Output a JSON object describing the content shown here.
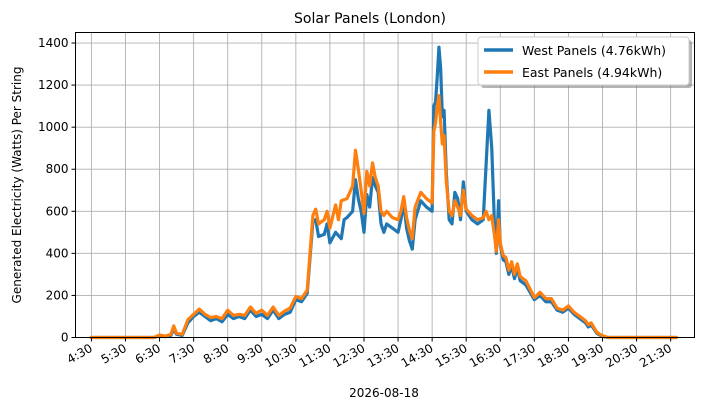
{
  "chart_data": {
    "type": "line",
    "title": "Solar Panels (London)",
    "xlabel": "2026-08-18",
    "ylabel": "Generated Electricity (Watts) Per String",
    "grid": true,
    "legend_position": "top-right",
    "xlim": [
      "04:02",
      "22:12"
    ],
    "ylim": [
      0,
      1450
    ],
    "x_ticks": [
      "4:30",
      "5:30",
      "6:30",
      "7:30",
      "8:30",
      "9:30",
      "10:30",
      "11:30",
      "12:30",
      "13:30",
      "14:30",
      "15:30",
      "16:30",
      "17:30",
      "18:30",
      "19:30",
      "20:30",
      "21:30"
    ],
    "y_ticks": [
      0,
      200,
      400,
      600,
      800,
      1000,
      1200,
      1400
    ],
    "series": [
      {
        "name": "West Panels (4.76kWh)",
        "color": "#1f77b4",
        "points": [
          [
            "04:30",
            0
          ],
          [
            "06:20",
            0
          ],
          [
            "06:30",
            8
          ],
          [
            "06:40",
            4
          ],
          [
            "06:50",
            10
          ],
          [
            "06:55",
            40
          ],
          [
            "07:00",
            15
          ],
          [
            "07:10",
            10
          ],
          [
            "07:20",
            70
          ],
          [
            "07:30",
            100
          ],
          [
            "07:40",
            120
          ],
          [
            "07:50",
            100
          ],
          [
            "08:00",
            80
          ],
          [
            "08:10",
            90
          ],
          [
            "08:20",
            75
          ],
          [
            "08:30",
            110
          ],
          [
            "08:40",
            90
          ],
          [
            "08:50",
            100
          ],
          [
            "09:00",
            90
          ],
          [
            "09:10",
            130
          ],
          [
            "09:20",
            100
          ],
          [
            "09:30",
            110
          ],
          [
            "09:40",
            90
          ],
          [
            "09:50",
            130
          ],
          [
            "10:00",
            90
          ],
          [
            "10:10",
            110
          ],
          [
            "10:20",
            120
          ],
          [
            "10:30",
            180
          ],
          [
            "10:40",
            170
          ],
          [
            "10:50",
            210
          ],
          [
            "11:00",
            550
          ],
          [
            "11:05",
            560
          ],
          [
            "11:10",
            480
          ],
          [
            "11:20",
            490
          ],
          [
            "11:25",
            540
          ],
          [
            "11:30",
            450
          ],
          [
            "11:40",
            500
          ],
          [
            "11:50",
            470
          ],
          [
            "11:55",
            560
          ],
          [
            "12:00",
            570
          ],
          [
            "12:10",
            600
          ],
          [
            "12:15",
            750
          ],
          [
            "12:20",
            660
          ],
          [
            "12:25",
            600
          ],
          [
            "12:30",
            500
          ],
          [
            "12:35",
            680
          ],
          [
            "12:40",
            620
          ],
          [
            "12:45",
            760
          ],
          [
            "12:50",
            720
          ],
          [
            "12:55",
            690
          ],
          [
            "13:00",
            540
          ],
          [
            "13:05",
            500
          ],
          [
            "13:10",
            540
          ],
          [
            "13:20",
            520
          ],
          [
            "13:30",
            500
          ],
          [
            "13:35",
            560
          ],
          [
            "13:40",
            640
          ],
          [
            "13:45",
            520
          ],
          [
            "13:50",
            460
          ],
          [
            "13:55",
            420
          ],
          [
            "14:00",
            560
          ],
          [
            "14:10",
            650
          ],
          [
            "14:20",
            620
          ],
          [
            "14:30",
            600
          ],
          [
            "14:33",
            1100
          ],
          [
            "14:36",
            1120
          ],
          [
            "14:39",
            1240
          ],
          [
            "14:42",
            1380
          ],
          [
            "14:45",
            1280
          ],
          [
            "14:48",
            1050
          ],
          [
            "14:51",
            1080
          ],
          [
            "14:55",
            780
          ],
          [
            "15:00",
            560
          ],
          [
            "15:05",
            540
          ],
          [
            "15:10",
            690
          ],
          [
            "15:15",
            660
          ],
          [
            "15:20",
            560
          ],
          [
            "15:25",
            740
          ],
          [
            "15:30",
            600
          ],
          [
            "15:40",
            560
          ],
          [
            "15:50",
            540
          ],
          [
            "16:00",
            560
          ],
          [
            "16:05",
            820
          ],
          [
            "16:10",
            1080
          ],
          [
            "16:15",
            900
          ],
          [
            "16:20",
            520
          ],
          [
            "16:23",
            400
          ],
          [
            "16:27",
            650
          ],
          [
            "16:30",
            440
          ],
          [
            "16:35",
            370
          ],
          [
            "16:40",
            360
          ],
          [
            "16:45",
            300
          ],
          [
            "16:50",
            340
          ],
          [
            "16:55",
            280
          ],
          [
            "17:00",
            330
          ],
          [
            "17:05",
            270
          ],
          [
            "17:15",
            250
          ],
          [
            "17:30",
            180
          ],
          [
            "17:40",
            200
          ],
          [
            "17:50",
            170
          ],
          [
            "18:00",
            170
          ],
          [
            "18:10",
            130
          ],
          [
            "18:20",
            120
          ],
          [
            "18:30",
            140
          ],
          [
            "18:40",
            110
          ],
          [
            "18:50",
            90
          ],
          [
            "19:00",
            70
          ],
          [
            "19:05",
            50
          ],
          [
            "19:10",
            60
          ],
          [
            "19:20",
            20
          ],
          [
            "19:30",
            5
          ],
          [
            "19:40",
            0
          ],
          [
            "21:40",
            0
          ]
        ]
      },
      {
        "name": "East Panels (4.94kWh)",
        "color": "#ff7f0e",
        "points": [
          [
            "04:30",
            0
          ],
          [
            "06:20",
            0
          ],
          [
            "06:30",
            12
          ],
          [
            "06:40",
            6
          ],
          [
            "06:50",
            15
          ],
          [
            "06:55",
            55
          ],
          [
            "07:00",
            20
          ],
          [
            "07:10",
            15
          ],
          [
            "07:20",
            85
          ],
          [
            "07:30",
            110
          ],
          [
            "07:40",
            135
          ],
          [
            "07:50",
            110
          ],
          [
            "08:00",
            95
          ],
          [
            "08:10",
            100
          ],
          [
            "08:20",
            90
          ],
          [
            "08:30",
            130
          ],
          [
            "08:40",
            105
          ],
          [
            "08:50",
            110
          ],
          [
            "09:00",
            105
          ],
          [
            "09:10",
            145
          ],
          [
            "09:20",
            115
          ],
          [
            "09:30",
            130
          ],
          [
            "09:40",
            105
          ],
          [
            "09:50",
            145
          ],
          [
            "10:00",
            105
          ],
          [
            "10:10",
            125
          ],
          [
            "10:20",
            140
          ],
          [
            "10:30",
            195
          ],
          [
            "10:40",
            185
          ],
          [
            "10:50",
            225
          ],
          [
            "11:00",
            580
          ],
          [
            "11:05",
            610
          ],
          [
            "11:10",
            540
          ],
          [
            "11:20",
            560
          ],
          [
            "11:25",
            600
          ],
          [
            "11:30",
            520
          ],
          [
            "11:40",
            630
          ],
          [
            "11:45",
            560
          ],
          [
            "11:50",
            650
          ],
          [
            "12:00",
            660
          ],
          [
            "12:10",
            720
          ],
          [
            "12:15",
            890
          ],
          [
            "12:20",
            800
          ],
          [
            "12:25",
            700
          ],
          [
            "12:30",
            590
          ],
          [
            "12:35",
            790
          ],
          [
            "12:40",
            720
          ],
          [
            "12:45",
            830
          ],
          [
            "12:50",
            760
          ],
          [
            "12:55",
            720
          ],
          [
            "13:00",
            600
          ],
          [
            "13:05",
            580
          ],
          [
            "13:10",
            600
          ],
          [
            "13:20",
            570
          ],
          [
            "13:30",
            560
          ],
          [
            "13:35",
            600
          ],
          [
            "13:40",
            670
          ],
          [
            "13:45",
            570
          ],
          [
            "13:50",
            510
          ],
          [
            "13:55",
            470
          ],
          [
            "14:00",
            620
          ],
          [
            "14:10",
            690
          ],
          [
            "14:20",
            660
          ],
          [
            "14:30",
            640
          ],
          [
            "14:33",
            980
          ],
          [
            "14:36",
            1020
          ],
          [
            "14:39",
            1100
          ],
          [
            "14:42",
            1150
          ],
          [
            "14:45",
            1020
          ],
          [
            "14:48",
            920
          ],
          [
            "14:51",
            960
          ],
          [
            "14:55",
            740
          ],
          [
            "15:00",
            600
          ],
          [
            "15:05",
            580
          ],
          [
            "15:10",
            650
          ],
          [
            "15:15",
            620
          ],
          [
            "15:20",
            580
          ],
          [
            "15:25",
            700
          ],
          [
            "15:30",
            610
          ],
          [
            "15:40",
            580
          ],
          [
            "15:50",
            560
          ],
          [
            "16:00",
            570
          ],
          [
            "16:05",
            600
          ],
          [
            "16:10",
            560
          ],
          [
            "16:15",
            580
          ],
          [
            "16:20",
            480
          ],
          [
            "16:23",
            410
          ],
          [
            "16:27",
            560
          ],
          [
            "16:30",
            450
          ],
          [
            "16:35",
            390
          ],
          [
            "16:40",
            380
          ],
          [
            "16:45",
            320
          ],
          [
            "16:50",
            360
          ],
          [
            "16:55",
            300
          ],
          [
            "17:00",
            350
          ],
          [
            "17:05",
            290
          ],
          [
            "17:15",
            270
          ],
          [
            "17:30",
            190
          ],
          [
            "17:40",
            215
          ],
          [
            "17:50",
            185
          ],
          [
            "18:00",
            185
          ],
          [
            "18:10",
            140
          ],
          [
            "18:20",
            130
          ],
          [
            "18:30",
            150
          ],
          [
            "18:40",
            120
          ],
          [
            "18:50",
            100
          ],
          [
            "19:00",
            80
          ],
          [
            "19:05",
            60
          ],
          [
            "19:10",
            70
          ],
          [
            "19:20",
            25
          ],
          [
            "19:30",
            8
          ],
          [
            "19:40",
            0
          ],
          [
            "21:40",
            0
          ]
        ]
      }
    ]
  }
}
